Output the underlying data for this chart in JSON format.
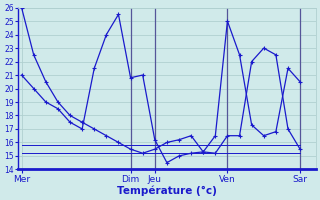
{
  "title": "",
  "xlabel": "Température (°c)",
  "ylabel": "",
  "ylim": [
    14,
    26
  ],
  "yticks": [
    14,
    15,
    16,
    17,
    18,
    19,
    20,
    21,
    22,
    23,
    24,
    25,
    26
  ],
  "background_color": "#d0eaea",
  "grid_color": "#b0d0d0",
  "line_color": "#1a1acc",
  "axis_color": "#1a1acc",
  "x_day_labels": [
    "Mer",
    "Dim",
    "Jeu",
    "Ven",
    "Sar"
  ],
  "x_day_positions": [
    0,
    9,
    11,
    17,
    23
  ],
  "xlim": [
    -0.3,
    24.3
  ],
  "n_points": 24,
  "series_with_markers": [
    [
      26,
      22.5,
      20.5,
      19.0,
      18.0,
      17.5,
      17.0,
      16.5,
      16.0,
      15.5,
      15.2,
      15.5,
      16.0,
      16.2,
      16.5,
      15.3,
      15.2,
      16.5,
      16.5,
      22.0,
      23.0,
      22.5,
      17.0,
      15.5
    ],
    [
      21,
      20.0,
      19.0,
      18.5,
      17.5,
      17.0,
      21.5,
      24.0,
      25.5,
      20.8,
      21.0,
      16.2,
      14.5,
      15.0,
      15.2,
      15.3,
      16.5,
      25.0,
      22.5,
      17.3,
      16.5,
      16.8,
      21.5,
      20.5
    ]
  ],
  "series_flat": [
    [
      15.8,
      15.8,
      15.8,
      15.8,
      15.8,
      15.8,
      15.8,
      15.8,
      15.8,
      15.8,
      15.8,
      15.8,
      15.8,
      15.8,
      15.8,
      15.8,
      15.8,
      15.8,
      15.8,
      15.8,
      15.8,
      15.8,
      15.8,
      15.8
    ],
    [
      15.2,
      15.2,
      15.2,
      15.2,
      15.2,
      15.2,
      15.2,
      15.2,
      15.2,
      15.2,
      15.2,
      15.2,
      15.2,
      15.2,
      15.2,
      15.2,
      15.2,
      15.2,
      15.2,
      15.2,
      15.2,
      15.2,
      15.2,
      15.2
    ]
  ]
}
